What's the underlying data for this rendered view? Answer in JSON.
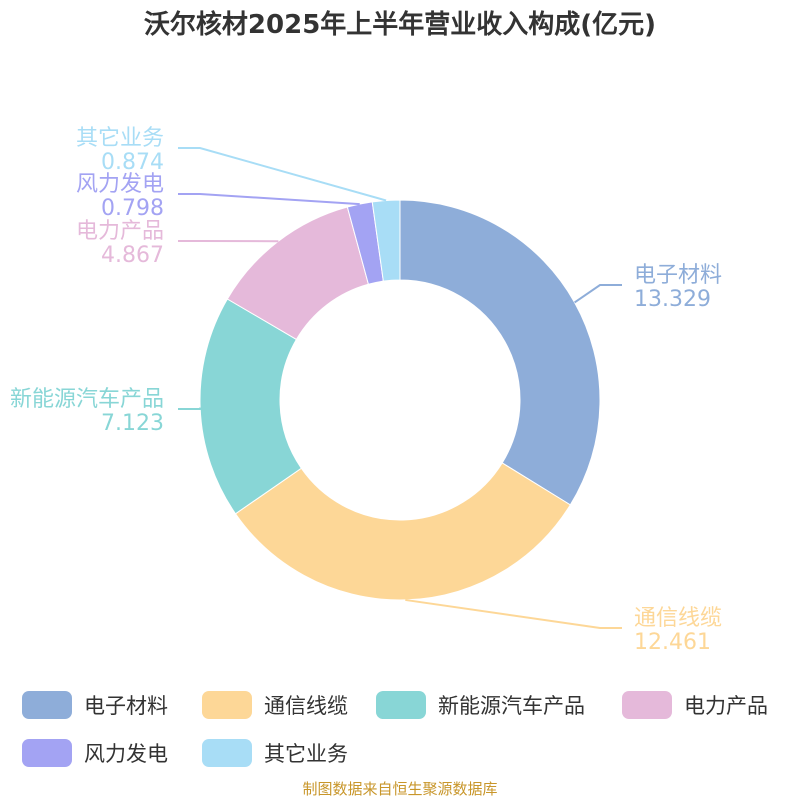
{
  "title": "沃尔核材2025年上半年营业收入构成(亿元)",
  "source": "制图数据来自恒生聚源数据库",
  "chart_data": {
    "type": "pie",
    "subtype": "donut",
    "title": "沃尔核材2025年上半年营业收入构成(亿元)",
    "categories": [
      "电子材料",
      "通信线缆",
      "新能源汽车产品",
      "电力产品",
      "风力发电",
      "其它业务"
    ],
    "values": [
      13.329,
      12.461,
      7.123,
      4.867,
      0.798,
      0.874
    ],
    "value_labels": [
      "13.329",
      "12.461",
      "7.123",
      "4.867",
      "0.798",
      "0.874"
    ],
    "colors": [
      "#8eadd9",
      "#fdd797",
      "#88d6d6",
      "#e5b9da",
      "#a3a3f3",
      "#a8ddf6"
    ],
    "legend_position": "bottom"
  }
}
